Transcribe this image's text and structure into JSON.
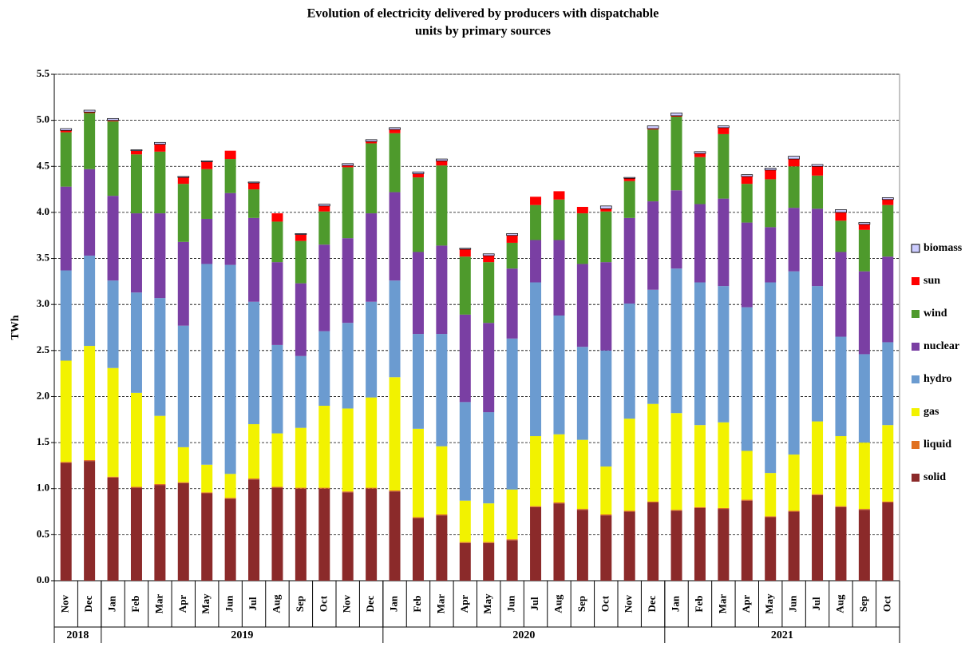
{
  "chart_data": {
    "type": "stacked-bar",
    "title": "Evolution of electricity delivered by producers with dispatchable",
    "subtitle": "units by primary sources",
    "y_label": "TWh",
    "categories": [
      "Nov",
      "Dec",
      "Jan",
      "Feb",
      "Mar",
      "Apr",
      "May",
      "Jun",
      "Jul",
      "Aug",
      "Sep",
      "Oct",
      "Nov",
      "Dec",
      "Jan",
      "Feb",
      "Mar",
      "Apr",
      "May",
      "Jun",
      "Jul",
      "Aug",
      "Sep",
      "Oct",
      "Nov",
      "Dec",
      "Jan",
      "Feb",
      "Mar",
      "Apr",
      "May",
      "Jun",
      "Jul",
      "Aug",
      "Sep",
      "Oct"
    ],
    "category_groups": [
      {
        "label": "2018",
        "size": 2
      },
      {
        "label": "2019",
        "size": 12
      },
      {
        "label": "2020",
        "size": 12
      },
      {
        "label": "2021",
        "size": 10
      }
    ],
    "ylim": [
      0,
      5.5
    ],
    "yticks": [
      {
        "value": 0,
        "label": "0.0"
      },
      0.5,
      {
        "value": 1,
        "label": "1.0"
      },
      1.5,
      {
        "value": 2,
        "label": "2.0"
      },
      2.5,
      {
        "value": 3,
        "label": "3.0"
      },
      3.5,
      {
        "value": 4,
        "label": "4.0"
      },
      4.5,
      {
        "value": 5,
        "label": "5.0"
      },
      5.5
    ],
    "grid": true,
    "legend": "right",
    "series": [
      {
        "name": "solid",
        "color": "#8b2a2a",
        "values": [
          1.28,
          1.3,
          1.12,
          1.01,
          1.04,
          1.06,
          0.95,
          0.89,
          1.1,
          1.01,
          1.0,
          1.0,
          0.96,
          1.0,
          0.97,
          0.68,
          0.71,
          0.41,
          0.41,
          0.44,
          0.8,
          0.84,
          0.77,
          0.71,
          0.75,
          0.85,
          0.76,
          0.79,
          0.78,
          0.87,
          0.69,
          0.75,
          0.93,
          0.8,
          0.77,
          0.85
        ]
      },
      {
        "name": "liquid",
        "color": "#e07020",
        "values": [
          0.01,
          0.01,
          0.01,
          0.01,
          0.01,
          0.01,
          0.01,
          0.01,
          0.01,
          0.01,
          0.01,
          0.01,
          0.01,
          0.01,
          0.01,
          0.01,
          0.01,
          0.01,
          0.01,
          0.01,
          0.01,
          0.01,
          0.01,
          0.01,
          0.01,
          0.01,
          0.01,
          0.01,
          0.01,
          0.01,
          0.01,
          0.01,
          0.01,
          0.01,
          0.01,
          0.01
        ]
      },
      {
        "name": "gas",
        "color": "#f2f200",
        "values": [
          1.1,
          1.24,
          1.18,
          1.02,
          0.74,
          0.38,
          0.3,
          0.26,
          0.59,
          0.58,
          0.65,
          0.89,
          0.9,
          0.98,
          1.23,
          0.96,
          0.74,
          0.45,
          0.42,
          0.54,
          0.76,
          0.74,
          0.75,
          0.52,
          1.0,
          1.06,
          1.05,
          0.89,
          0.93,
          0.53,
          0.47,
          0.61,
          0.79,
          0.76,
          0.72,
          0.83
        ]
      },
      {
        "name": "hydro",
        "color": "#6b9bd0",
        "values": [
          0.98,
          0.98,
          0.95,
          1.09,
          1.28,
          1.32,
          2.18,
          2.27,
          1.33,
          0.96,
          0.78,
          0.81,
          0.93,
          1.04,
          1.05,
          1.03,
          1.22,
          1.07,
          0.99,
          1.64,
          1.67,
          1.29,
          1.01,
          1.26,
          1.25,
          1.24,
          1.57,
          1.55,
          1.48,
          1.56,
          2.07,
          1.99,
          1.47,
          1.08,
          0.96,
          0.9
        ]
      },
      {
        "name": "nuclear",
        "color": "#7a3fa3",
        "values": [
          0.91,
          0.94,
          0.92,
          0.86,
          0.92,
          0.91,
          0.49,
          0.78,
          0.91,
          0.9,
          0.79,
          0.94,
          0.92,
          0.96,
          0.96,
          0.89,
          0.96,
          0.95,
          0.97,
          0.76,
          0.46,
          0.82,
          0.9,
          0.96,
          0.93,
          0.96,
          0.85,
          0.85,
          0.95,
          0.92,
          0.6,
          0.69,
          0.84,
          0.92,
          0.9,
          0.93
        ]
      },
      {
        "name": "wind",
        "color": "#4e9a2c",
        "values": [
          0.59,
          0.61,
          0.81,
          0.64,
          0.67,
          0.63,
          0.54,
          0.37,
          0.31,
          0.44,
          0.46,
          0.36,
          0.77,
          0.76,
          0.64,
          0.81,
          0.87,
          0.63,
          0.66,
          0.28,
          0.38,
          0.44,
          0.55,
          0.55,
          0.4,
          0.78,
          0.8,
          0.51,
          0.7,
          0.42,
          0.52,
          0.45,
          0.36,
          0.34,
          0.45,
          0.56
        ]
      },
      {
        "name": "sun",
        "color": "#ff0000",
        "values": [
          0.02,
          0.01,
          0.01,
          0.04,
          0.08,
          0.07,
          0.08,
          0.09,
          0.07,
          0.09,
          0.07,
          0.06,
          0.02,
          0.02,
          0.04,
          0.04,
          0.05,
          0.08,
          0.07,
          0.08,
          0.09,
          0.09,
          0.07,
          0.03,
          0.03,
          0.01,
          0.01,
          0.04,
          0.07,
          0.08,
          0.1,
          0.08,
          0.1,
          0.09,
          0.06,
          0.06
        ]
      },
      {
        "name": "biomass",
        "color": "#ccccff",
        "values": [
          0.02,
          0.02,
          0.02,
          0.01,
          0.02,
          0.01,
          0.01,
          0,
          0.01,
          0,
          0.01,
          0.02,
          0.02,
          0.02,
          0.02,
          0.02,
          0.02,
          0.01,
          0.02,
          0.02,
          0,
          0,
          0,
          0.03,
          0.01,
          0.03,
          0.03,
          0.02,
          0.02,
          0.02,
          0.02,
          0.03,
          0.02,
          0.03,
          0.02,
          0.02
        ]
      }
    ]
  }
}
